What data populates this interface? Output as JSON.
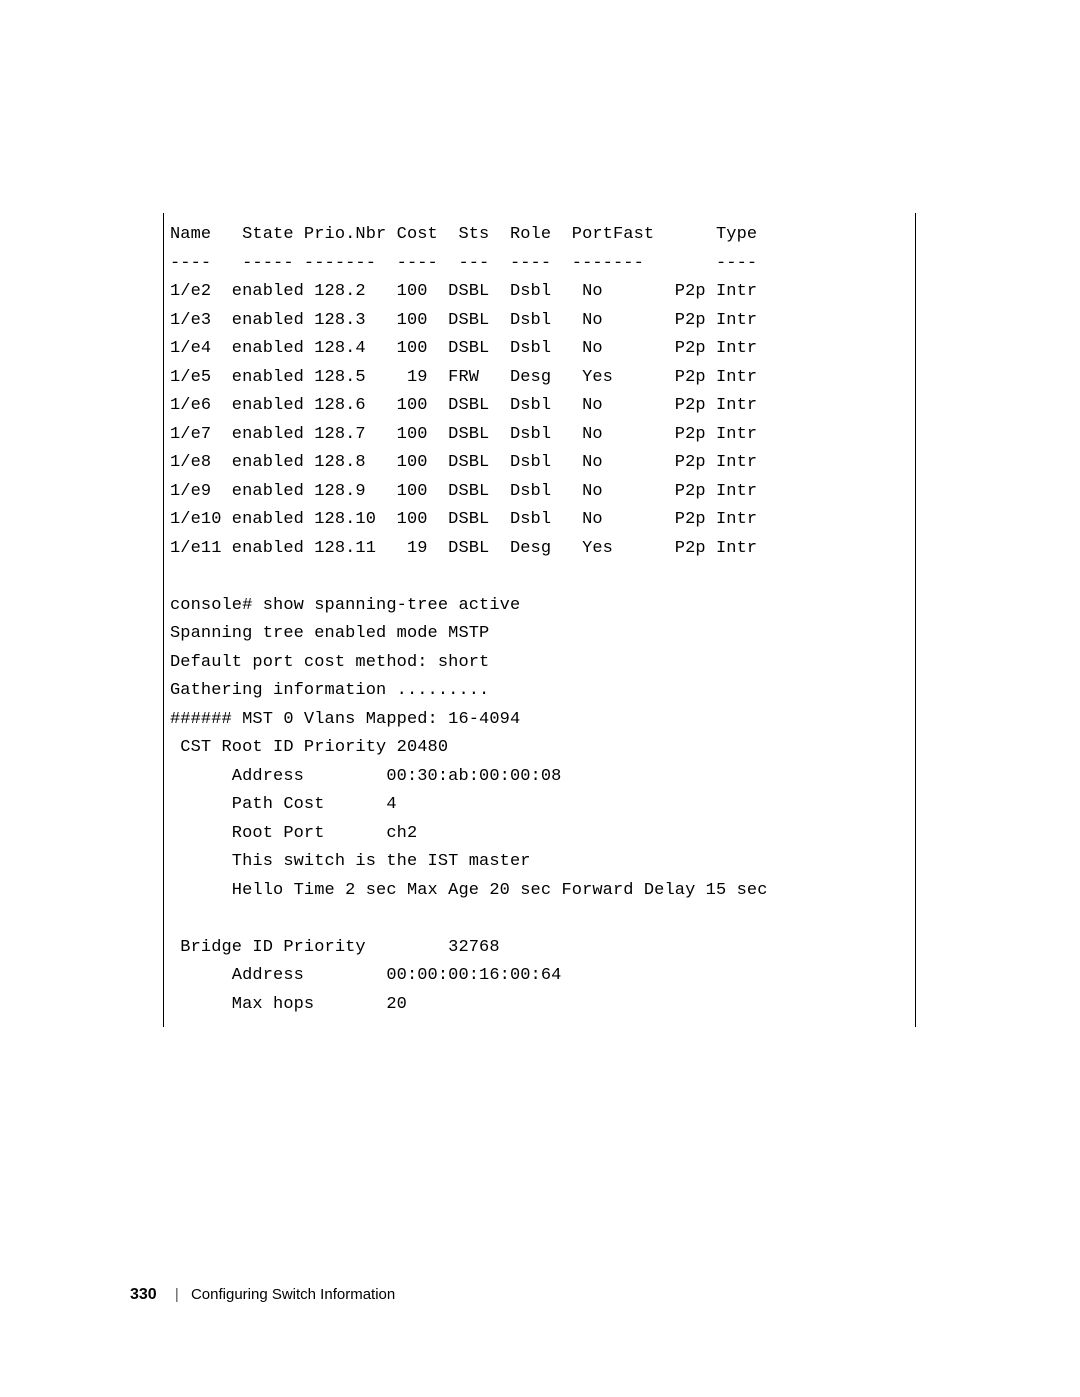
{
  "terminal": {
    "header": {
      "columns": [
        "Name",
        "State",
        "Prio.Nbr",
        "Cost",
        "Sts",
        "Role",
        "PortFast",
        "Type"
      ],
      "underlines": [
        "----",
        "-----",
        "-------",
        "----",
        "---",
        "----",
        "-------",
        "----"
      ]
    },
    "rows": [
      {
        "name": "1/e2",
        "state": "enabled",
        "prio": "128.2",
        "cost": "100",
        "sts": "DSBL",
        "role": "Dsbl",
        "portfast": "No",
        "type": "P2p Intr"
      },
      {
        "name": "1/e3",
        "state": "enabled",
        "prio": "128.3",
        "cost": "100",
        "sts": "DSBL",
        "role": "Dsbl",
        "portfast": "No",
        "type": "P2p Intr"
      },
      {
        "name": "1/e4",
        "state": "enabled",
        "prio": "128.4",
        "cost": "100",
        "sts": "DSBL",
        "role": "Dsbl",
        "portfast": "No",
        "type": "P2p Intr"
      },
      {
        "name": "1/e5",
        "state": "enabled",
        "prio": "128.5",
        "cost": "19",
        "sts": "FRW",
        "role": "Desg",
        "portfast": "Yes",
        "type": "P2p Intr"
      },
      {
        "name": "1/e6",
        "state": "enabled",
        "prio": "128.6",
        "cost": "100",
        "sts": "DSBL",
        "role": "Dsbl",
        "portfast": "No",
        "type": "P2p Intr"
      },
      {
        "name": "1/e7",
        "state": "enabled",
        "prio": "128.7",
        "cost": "100",
        "sts": "DSBL",
        "role": "Dsbl",
        "portfast": "No",
        "type": "P2p Intr"
      },
      {
        "name": "1/e8",
        "state": "enabled",
        "prio": "128.8",
        "cost": "100",
        "sts": "DSBL",
        "role": "Dsbl",
        "portfast": "No",
        "type": "P2p Intr"
      },
      {
        "name": "1/e9",
        "state": "enabled",
        "prio": "128.9",
        "cost": "100",
        "sts": "DSBL",
        "role": "Dsbl",
        "portfast": "No",
        "type": "P2p Intr"
      },
      {
        "name": "1/e10",
        "state": "enabled",
        "prio": "128.10",
        "cost": "100",
        "sts": "DSBL",
        "role": "Dsbl",
        "portfast": "No",
        "type": "P2p Intr"
      },
      {
        "name": "1/e11",
        "state": "enabled",
        "prio": "128.11",
        "cost": "19",
        "sts": "DSBL",
        "role": "Desg",
        "portfast": "Yes",
        "type": "P2p Intr"
      }
    ],
    "body": {
      "cmd": "console# show spanning-tree active",
      "line2": "Spanning tree enabled mode MSTP",
      "line3": "Default port cost method: short",
      "line4": "Gathering information .........",
      "line5": "###### MST 0 Vlans Mapped: 16-4094",
      "line6": " CST Root ID Priority 20480",
      "addr_label": "Address",
      "addr_val": "00:30:ab:00:00:08",
      "pathcost_label": "Path Cost",
      "pathcost_val": "4",
      "rootport_label": "Root Port",
      "rootport_val": "ch2",
      "ist": "This switch is the IST master",
      "hello": "Hello Time 2 sec Max Age 20 sec Forward Delay 15 sec",
      "bridge_line": " Bridge ID Priority        32768",
      "bridge_addr_label": "Address",
      "bridge_addr_val": "00:00:00:16:00:64",
      "maxhops_label": "Max hops",
      "maxhops_val": "20"
    }
  },
  "footer": {
    "page_number": "330",
    "section": "Configuring Switch Information"
  }
}
